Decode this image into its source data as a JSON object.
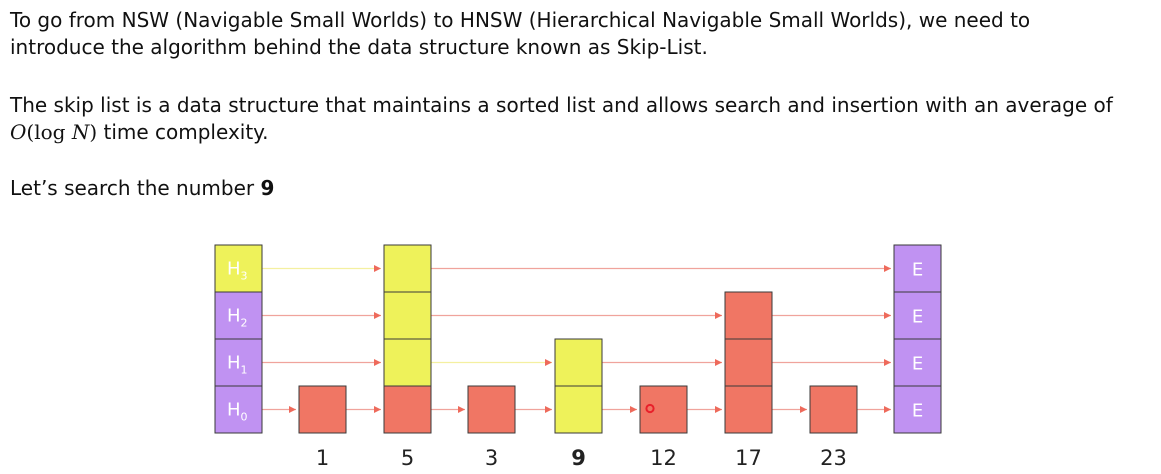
{
  "intro": {
    "line1": "To go from NSW (Navigable Small Worlds) to HNSW (Hierarchical Navigable Small Worlds), we need to",
    "line2": "introduce the algorithm behind the data structure known as Skip-List."
  },
  "description": {
    "line1": "The skip list is a data structure that maintains a sorted list and allows search and insertion with an average of",
    "complexity_o": "O",
    "complexity_func": "(log ",
    "complexity_n": "N",
    "complexity_close": ")",
    "complexity_suffix": " time complexity."
  },
  "search": {
    "prefix": "Let’s search the number ",
    "target": "9"
  },
  "diagram": {
    "head_letter": "H",
    "head_indices": [
      "0",
      "1",
      "2",
      "3"
    ],
    "end_label": "E",
    "values": [
      "1",
      "5",
      "3",
      "9",
      "12",
      "17",
      "23"
    ],
    "highlighted_value": "9",
    "node_heights": [
      1,
      4,
      1,
      2,
      1,
      3,
      1
    ],
    "search_path": [
      [
        1,
        3
      ],
      [
        1,
        2
      ],
      [
        1,
        1
      ],
      [
        3,
        1
      ],
      [
        3,
        0
      ]
    ],
    "colors": {
      "head": "#c092f2",
      "head_highlight": "#eef25a",
      "end": "#c092f2",
      "node": "#f07664",
      "node_highlight": "#eef25a",
      "border": "#3a3a3a",
      "link": "#f0a39c",
      "link_highlight": "#f4f0a0",
      "arrow": "#ee6a5b",
      "probe": "#e8202a"
    }
  }
}
